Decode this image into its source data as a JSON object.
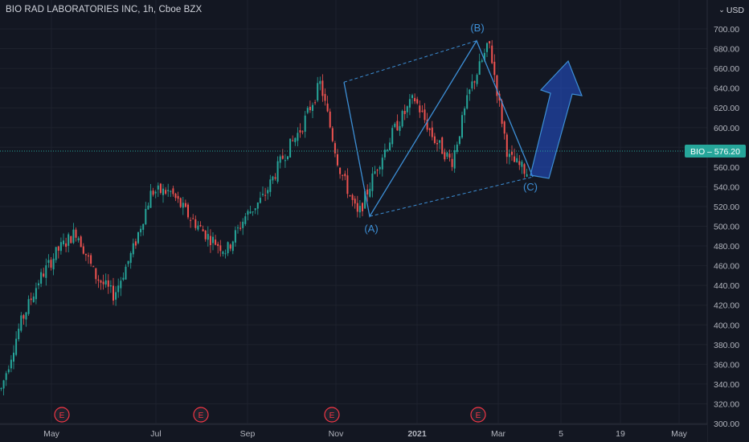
{
  "header": {
    "title": "BIO RAD LABORATORIES INC, 1h, Cboe BZX",
    "currency": "USD"
  },
  "price_tag": {
    "symbol": "BIO",
    "price": "576.20"
  },
  "colors": {
    "background": "#131722",
    "grid": "#1e222d",
    "up": "#26a69a",
    "down": "#ef5350",
    "pattern": "#3d8fd6",
    "arrow": "#2962ff",
    "earnings": "#f23645"
  },
  "chart_data": {
    "type": "candlestick",
    "y_axis": {
      "ticks": [
        "300.00",
        "320.00",
        "340.00",
        "360.00",
        "380.00",
        "400.00",
        "420.00",
        "440.00",
        "460.00",
        "480.00",
        "500.00",
        "520.00",
        "540.00",
        "560.00",
        "580.00",
        "600.00",
        "620.00",
        "640.00",
        "660.00",
        "680.00",
        "700.00"
      ]
    },
    "x_axis": {
      "ticks": [
        "May",
        "Jul",
        "Sep",
        "Nov",
        "2021",
        "Mar",
        "5",
        "19",
        "May"
      ]
    },
    "approx_path": [
      [
        "Apr 2020",
        335
      ],
      [
        "mid Apr 2020",
        400
      ],
      [
        "May 2020",
        445
      ],
      [
        "late May 2020",
        475
      ],
      [
        "Jun 2020",
        495
      ],
      [
        "mid Jun 2020",
        450
      ],
      [
        "early Jul 2020",
        430
      ],
      [
        "mid Jul 2020",
        475
      ],
      [
        "late Jul 2020",
        535
      ],
      [
        "Aug 2020",
        535
      ],
      [
        "mid Aug 2020",
        510
      ],
      [
        "Sep 2020",
        490
      ],
      [
        "mid Sep 2020",
        475
      ],
      [
        "late Sep 2020",
        510
      ],
      [
        "early Oct 2020",
        530
      ],
      [
        "mid Oct 2020",
        570
      ],
      [
        "late Oct 2020",
        600
      ],
      [
        "early Nov 2020",
        645
      ],
      [
        "mid Nov 2020",
        560
      ],
      [
        "late Nov 2020",
        510
      ],
      [
        "Dec 2020",
        560
      ],
      [
        "late Dec 2020",
        600
      ],
      [
        "early Jan 2021",
        630
      ],
      [
        "mid Jan 2021",
        590
      ],
      [
        "late Jan 2021",
        565
      ],
      [
        "Feb 2021",
        640
      ],
      [
        "mid Feb 2021",
        685
      ],
      [
        "late Feb 2021",
        570
      ],
      [
        "Mar 2021",
        555
      ]
    ],
    "pattern_labels": [
      "(A)",
      "(B)",
      "(C)"
    ],
    "earnings_markers": [
      "E",
      "E",
      "E",
      "E"
    ],
    "last_price": 576.2
  }
}
